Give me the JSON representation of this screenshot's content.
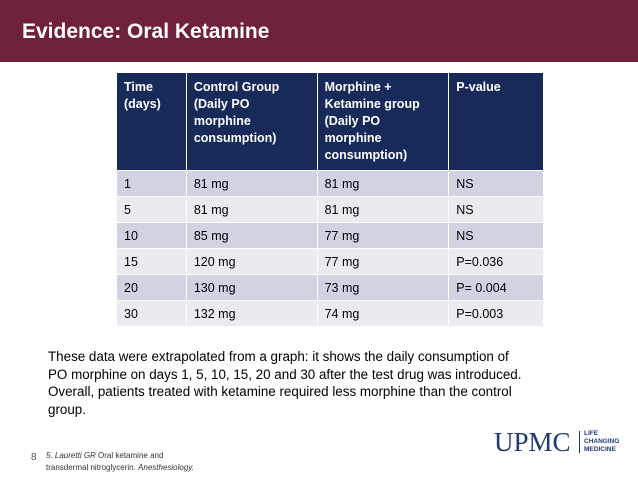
{
  "slide": {
    "title": "Evidence: Oral Ketamine",
    "page_number": "8",
    "colors": {
      "title_bar": "#6e2138",
      "table_header": "#172a5a",
      "row_dark": "#d0d4e0",
      "row_light": "#e9ebf1",
      "logo": "#1f3a72"
    }
  },
  "table": {
    "headers": [
      [
        "Time",
        "(days)"
      ],
      [
        "Control Group",
        "(Daily PO",
        "morphine",
        "consumption)"
      ],
      [
        "Morphine +",
        "Ketamine group",
        "(Daily PO",
        "morphine",
        "consumption)"
      ],
      [
        "P-value"
      ]
    ],
    "rows": [
      [
        "1",
        "81 mg",
        "81 mg",
        "NS"
      ],
      [
        "5",
        "81 mg",
        "81 mg",
        "NS"
      ],
      [
        "10",
        "85 mg",
        "77 mg",
        "NS"
      ],
      [
        "15",
        "120 mg",
        "77 mg",
        "P=0.036"
      ],
      [
        "20",
        "130 mg",
        "73 mg",
        "P= 0.004"
      ],
      [
        "30",
        "132 mg",
        "74 mg",
        "P=0.003"
      ]
    ]
  },
  "caption": {
    "lines": [
      "These data were extrapolated from a graph: it shows the daily consumption of",
      "PO morphine on days 1, 5, 10, 15, 20 and 30 after the test drug was introduced.",
      "Overall, patients treated with ketamine required less morphine than the control",
      "group."
    ]
  },
  "reference": {
    "number": "5.",
    "author": "Lauretti GR",
    "text_line1": "Oral ketamine and",
    "text_line2": "transdermal nitroglycerin.",
    "journal": "Anesthesiology."
  },
  "logo": {
    "word": "UPMC",
    "tagline": [
      "LIFE",
      "CHANGING",
      "MEDICINE"
    ]
  }
}
